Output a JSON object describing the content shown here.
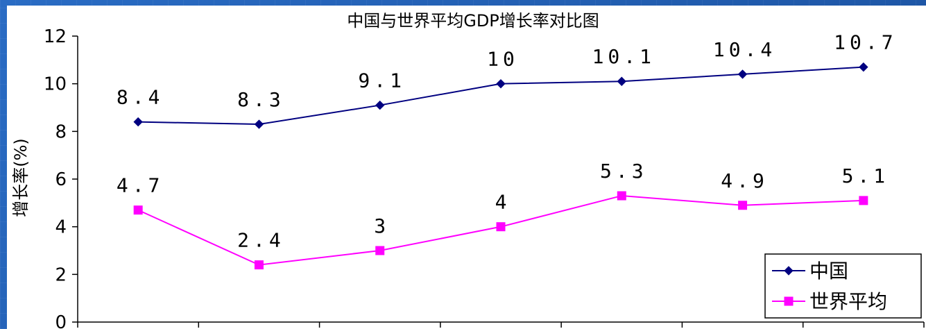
{
  "chart_data": {
    "type": "line",
    "title": "中国与世界平均GDP增长率对比图",
    "xlabel": "",
    "ylabel": "增长率(%)",
    "ylim": [
      0,
      12
    ],
    "yticks": [
      0,
      2,
      4,
      6,
      8,
      10,
      12
    ],
    "categories": [
      "",
      "",
      "",
      "",
      "",
      "",
      ""
    ],
    "grid": false,
    "legend": "bottom-right",
    "series": [
      {
        "name": "中国",
        "values": [
          8.4,
          8.3,
          9.1,
          10,
          10.1,
          10.4,
          10.7
        ],
        "labels": [
          "8.4",
          "8.3",
          "9.1",
          "10",
          "10.1",
          "10.4",
          "10.7"
        ],
        "color": "#000080",
        "marker": "diamond"
      },
      {
        "name": "世界平均",
        "values": [
          4.7,
          2.4,
          3,
          4,
          5.3,
          4.9,
          5.1
        ],
        "labels": [
          "4.7",
          "2.4",
          "3",
          "4",
          "5.3",
          "4.9",
          "5.1"
        ],
        "color": "#ff00ff",
        "marker": "square"
      }
    ]
  }
}
